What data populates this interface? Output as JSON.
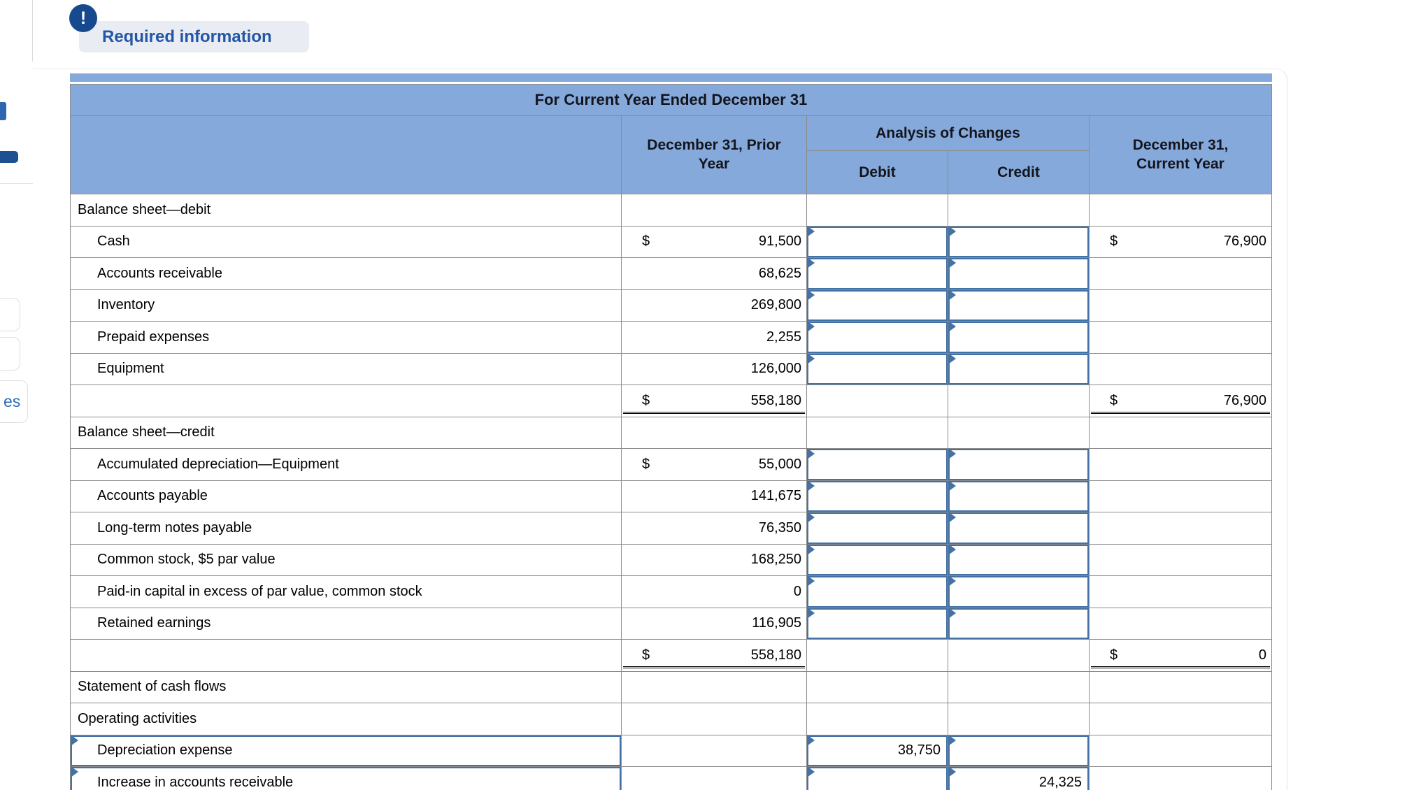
{
  "alert": {
    "icon": "!",
    "label": "Required information"
  },
  "sidebar_fragments": {
    "partial_label": "es"
  },
  "statement": {
    "title": "For Current Year Ended December 31",
    "headers": {
      "prior_year_line1": "December 31, Prior",
      "prior_year_line2": "Year",
      "analysis": "Analysis of Changes",
      "debit": "Debit",
      "credit": "Credit",
      "current_year_line1": "December 31,",
      "current_year_line2": "Current Year"
    },
    "dollar_sign": "$",
    "rows": [
      {
        "kind": "section",
        "label": "Balance sheet—debit"
      },
      {
        "kind": "account",
        "label": "Cash",
        "prior": "91,500",
        "prior_dollar": true,
        "inputs": true,
        "current": "76,900",
        "current_dollar": true
      },
      {
        "kind": "account",
        "label": "Accounts receivable",
        "prior": "68,625",
        "inputs": true
      },
      {
        "kind": "account",
        "label": "Inventory",
        "prior": "269,800",
        "inputs": true
      },
      {
        "kind": "account",
        "label": "Prepaid expenses",
        "prior": "2,255",
        "inputs": true
      },
      {
        "kind": "account",
        "label": "Equipment",
        "prior": "126,000",
        "inputs": true
      },
      {
        "kind": "total",
        "prior": "558,180",
        "prior_dollar": true,
        "current": "76,900",
        "current_dollar": true
      },
      {
        "kind": "section",
        "label": "Balance sheet—credit"
      },
      {
        "kind": "account",
        "label": "Accumulated depreciation—Equipment",
        "prior": "55,000",
        "prior_dollar": true,
        "inputs": true
      },
      {
        "kind": "account",
        "label": "Accounts payable",
        "prior": "141,675",
        "inputs": true
      },
      {
        "kind": "account",
        "label": "Long-term notes payable",
        "prior": "76,350",
        "inputs": true
      },
      {
        "kind": "account",
        "label": "Common stock, $5 par value",
        "prior": "168,250",
        "inputs": true
      },
      {
        "kind": "account",
        "label": "Paid-in capital in excess of par value, common stock",
        "prior": "0",
        "inputs": true
      },
      {
        "kind": "account",
        "label": "Retained earnings",
        "prior": "116,905",
        "inputs": true
      },
      {
        "kind": "total",
        "prior": "558,180",
        "prior_dollar": true,
        "current": "0",
        "current_dollar": true
      },
      {
        "kind": "section",
        "label": "Statement of cash flows"
      },
      {
        "kind": "section",
        "label": "Operating activities"
      },
      {
        "kind": "entry",
        "label": "Depreciation expense",
        "debit": "38,750"
      },
      {
        "kind": "entry",
        "label": "Increase in accounts receivable",
        "credit": "24,325"
      }
    ]
  }
}
